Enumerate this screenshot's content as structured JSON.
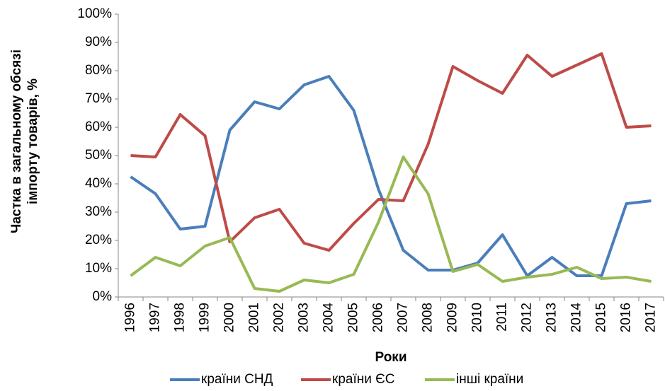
{
  "chart_data": {
    "type": "line",
    "y_label": [
      "Частка в загальному обсязі",
      "імпорту товарів, %"
    ],
    "x_label": "Роки",
    "categories": [
      "1996",
      "1997",
      "1998",
      "1999",
      "2000",
      "2001",
      "2002",
      "2003",
      "2004",
      "2005",
      "2006",
      "2007",
      "2008",
      "2009",
      "2010",
      "2011",
      "2012",
      "2013",
      "2014",
      "2015",
      "2016",
      "2017"
    ],
    "series": [
      {
        "name": "країни СНД",
        "color": "#4a7ebb",
        "values": [
          42.5,
          36.5,
          24,
          25,
          59,
          69,
          66.5,
          75,
          78,
          66,
          38,
          16.5,
          9.5,
          9.5,
          12,
          22,
          7.5,
          14,
          7.5,
          7.5,
          33,
          34
        ]
      },
      {
        "name": "країни ЄС",
        "color": "#be4b48",
        "values": [
          50,
          49.5,
          64.5,
          57,
          19.5,
          28,
          31,
          19,
          16.5,
          26,
          34.5,
          34,
          54,
          81.5,
          76.5,
          72,
          85.5,
          78,
          82,
          86,
          60,
          60.5
        ]
      },
      {
        "name": "інші країни",
        "color": "#98b954",
        "values": [
          7.5,
          14,
          11,
          18,
          21,
          3,
          2,
          6,
          5,
          8,
          26.5,
          49.5,
          36.5,
          9,
          11.5,
          5.5,
          7,
          8,
          10.5,
          6.5,
          7,
          5.5
        ]
      }
    ],
    "ylim": [
      0,
      100
    ],
    "yticks": [
      {
        "value": 0,
        "label": "0%"
      },
      {
        "value": 10,
        "label": "10%"
      },
      {
        "value": 20,
        "label": "20%"
      },
      {
        "value": 30,
        "label": "30%"
      },
      {
        "value": 40,
        "label": "40%"
      },
      {
        "value": 50,
        "label": "50%"
      },
      {
        "value": 60,
        "label": "60%"
      },
      {
        "value": 70,
        "label": "70%"
      },
      {
        "value": 80,
        "label": "80%"
      },
      {
        "value": 90,
        "label": "90%"
      },
      {
        "value": 100,
        "label": "100%"
      }
    ],
    "grid": false,
    "legend": "bottom"
  }
}
